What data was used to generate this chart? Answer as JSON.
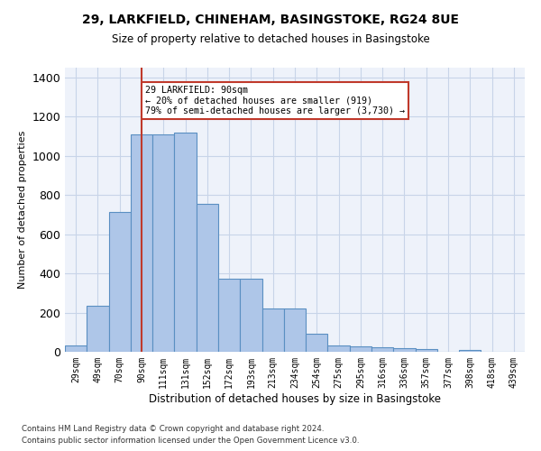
{
  "title_line1": "29, LARKFIELD, CHINEHAM, BASINGSTOKE, RG24 8UE",
  "title_line2": "Size of property relative to detached houses in Basingstoke",
  "xlabel": "Distribution of detached houses by size in Basingstoke",
  "ylabel": "Number of detached properties",
  "categories": [
    "29sqm",
    "49sqm",
    "70sqm",
    "90sqm",
    "111sqm",
    "131sqm",
    "152sqm",
    "172sqm",
    "193sqm",
    "213sqm",
    "234sqm",
    "254sqm",
    "275sqm",
    "295sqm",
    "316sqm",
    "336sqm",
    "357sqm",
    "377sqm",
    "398sqm",
    "418sqm",
    "439sqm"
  ],
  "values": [
    30,
    237,
    714,
    1108,
    1108,
    1120,
    755,
    372,
    371,
    223,
    222,
    90,
    30,
    26,
    23,
    18,
    13,
    0,
    10,
    0,
    0
  ],
  "bar_color": "#aec6e8",
  "bar_edge_color": "#5a8fc2",
  "background_color": "#eef2fa",
  "grid_color": "#c8d4e8",
  "vline_x": 3,
  "vline_color": "#c0392b",
  "annotation_text": "29 LARKFIELD: 90sqm\n← 20% of detached houses are smaller (919)\n79% of semi-detached houses are larger (3,730) →",
  "annotation_box_color": "#c0392b",
  "footer_line1": "Contains HM Land Registry data © Crown copyright and database right 2024.",
  "footer_line2": "Contains public sector information licensed under the Open Government Licence v3.0.",
  "ylim": [
    0,
    1450
  ],
  "yticks": [
    0,
    200,
    400,
    600,
    800,
    1000,
    1200,
    1400
  ]
}
